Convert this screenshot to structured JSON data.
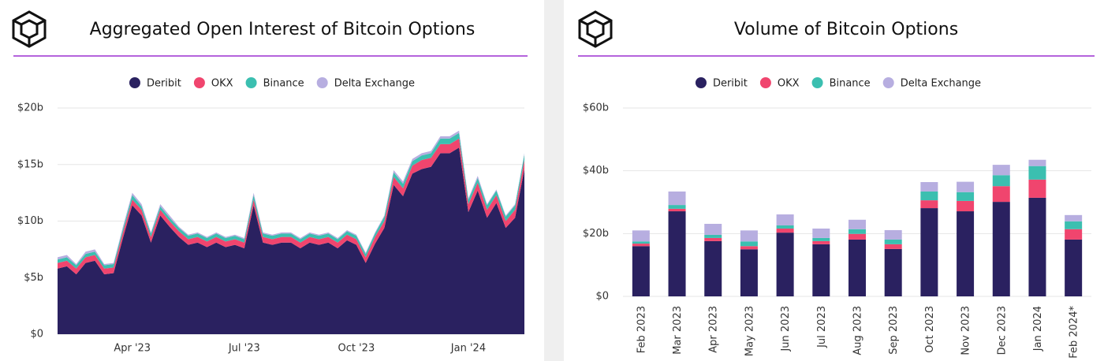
{
  "chart_data": [
    {
      "type": "stacked-area",
      "title": "Aggregated Open Interest of Bitcoin Options",
      "categories": [
        null,
        null,
        null,
        null,
        null,
        null,
        null,
        null,
        "Apr '23",
        null,
        null,
        null,
        null,
        null,
        null,
        null,
        null,
        null,
        null,
        null,
        "Jul '23",
        null,
        null,
        null,
        null,
        null,
        null,
        null,
        null,
        null,
        null,
        null,
        "Oct '23",
        null,
        null,
        null,
        null,
        null,
        null,
        null,
        null,
        null,
        null,
        null,
        "Jan '24",
        null,
        null,
        null,
        null,
        null,
        null
      ],
      "series": [
        {
          "name": "Deribit",
          "color": "#2a2160",
          "values": [
            5.8,
            6.0,
            5.3,
            6.3,
            6.5,
            5.3,
            5.4,
            8.5,
            11.4,
            10.5,
            8.1,
            10.5,
            9.5,
            8.6,
            7.9,
            8.1,
            7.7,
            8.1,
            7.7,
            7.9,
            7.6,
            11.4,
            8.1,
            7.9,
            8.1,
            8.1,
            7.6,
            8.1,
            7.9,
            8.1,
            7.6,
            8.3,
            7.9,
            6.3,
            8.0,
            9.4,
            13.2,
            12.2,
            14.2,
            14.6,
            14.8,
            16.0,
            16.0,
            16.5,
            10.8,
            12.7,
            10.3,
            11.6,
            9.4,
            10.3,
            14.6
          ]
        },
        {
          "name": "OKX",
          "color": "#f0456e",
          "values": [
            0.5,
            0.5,
            0.5,
            0.5,
            0.5,
            0.5,
            0.5,
            0.5,
            0.5,
            0.5,
            0.5,
            0.5,
            0.5,
            0.5,
            0.5,
            0.5,
            0.5,
            0.5,
            0.5,
            0.5,
            0.5,
            0.5,
            0.5,
            0.5,
            0.5,
            0.5,
            0.5,
            0.5,
            0.5,
            0.5,
            0.5,
            0.5,
            0.5,
            0.5,
            0.6,
            0.6,
            0.7,
            0.7,
            0.7,
            0.8,
            0.8,
            0.8,
            0.8,
            0.8,
            0.7,
            0.7,
            0.7,
            0.7,
            0.6,
            0.7,
            0.8
          ]
        },
        {
          "name": "Binance",
          "color": "#3bbfb0",
          "values": [
            0.3,
            0.3,
            0.3,
            0.3,
            0.3,
            0.3,
            0.3,
            0.3,
            0.4,
            0.3,
            0.3,
            0.3,
            0.3,
            0.3,
            0.3,
            0.3,
            0.3,
            0.3,
            0.3,
            0.3,
            0.3,
            0.4,
            0.3,
            0.3,
            0.3,
            0.3,
            0.3,
            0.3,
            0.3,
            0.3,
            0.3,
            0.3,
            0.3,
            0.3,
            0.3,
            0.4,
            0.4,
            0.4,
            0.4,
            0.4,
            0.4,
            0.5,
            0.5,
            0.5,
            0.4,
            0.4,
            0.4,
            0.4,
            0.4,
            0.4,
            0.5
          ]
        },
        {
          "name": "Delta Exchange",
          "color": "#b7aee0",
          "values": [
            0.2,
            0.2,
            0.1,
            0.2,
            0.2,
            0.1,
            0.1,
            0.2,
            0.2,
            0.2,
            0.1,
            0.2,
            0.2,
            0.1,
            0.1,
            0.1,
            0.1,
            0.1,
            0.1,
            0.1,
            0.1,
            0.2,
            0.1,
            0.1,
            0.1,
            0.1,
            0.1,
            0.1,
            0.1,
            0.1,
            0.1,
            0.1,
            0.1,
            0.1,
            0.1,
            0.1,
            0.2,
            0.2,
            0.2,
            0.2,
            0.2,
            0.2,
            0.2,
            0.2,
            0.1,
            0.2,
            0.1,
            0.1,
            0.1,
            0.1,
            0.1
          ]
        }
      ],
      "ylim": [
        0,
        20
      ],
      "yticks": [
        {
          "value": 0,
          "label": "$0"
        },
        {
          "value": 5,
          "label": "$5b"
        },
        {
          "value": 10,
          "label": "$10b"
        },
        {
          "value": 15,
          "label": "$15b"
        },
        {
          "value": 20,
          "label": "$20b"
        }
      ],
      "grid": true
    },
    {
      "type": "stacked-bar",
      "title": "Volume of Bitcoin Options",
      "categories": [
        "Feb 2023",
        "Mar 2023",
        "Apr 2023",
        "May 2023",
        "Jun 2023",
        "Jul 2023",
        "Aug 2023",
        "Sep 2023",
        "Oct 2023",
        "Nov 2023",
        "Dec 2023",
        "Jan 2024",
        "Feb 2024*"
      ],
      "series": [
        {
          "name": "Deribit",
          "color": "#2a2160",
          "values": [
            16.0,
            27.1,
            17.6,
            15.0,
            20.3,
            16.6,
            18.1,
            15.1,
            28.1,
            27.1,
            30.1,
            31.4,
            18.1
          ]
        },
        {
          "name": "OKX",
          "color": "#f0456e",
          "values": [
            0.8,
            0.8,
            1.0,
            1.0,
            1.3,
            1.0,
            1.8,
            1.5,
            2.5,
            3.3,
            5.0,
            5.8,
            3.3
          ]
        },
        {
          "name": "Binance",
          "color": "#3bbfb0",
          "values": [
            0.7,
            1.2,
            1.0,
            1.5,
            1.0,
            1.0,
            1.5,
            1.5,
            2.8,
            2.8,
            3.5,
            4.3,
            2.5
          ]
        },
        {
          "name": "Delta Exchange",
          "color": "#b7aee0",
          "values": [
            3.5,
            4.3,
            3.5,
            3.5,
            3.5,
            3.0,
            3.0,
            3.0,
            3.0,
            3.3,
            3.3,
            2.0,
            2.0
          ]
        }
      ],
      "ylim": [
        0,
        60
      ],
      "yticks": [
        {
          "value": 0,
          "label": "$0"
        },
        {
          "value": 20,
          "label": "$20b"
        },
        {
          "value": 40,
          "label": "$40b"
        },
        {
          "value": 60,
          "label": "$60b"
        }
      ],
      "grid": true
    }
  ]
}
